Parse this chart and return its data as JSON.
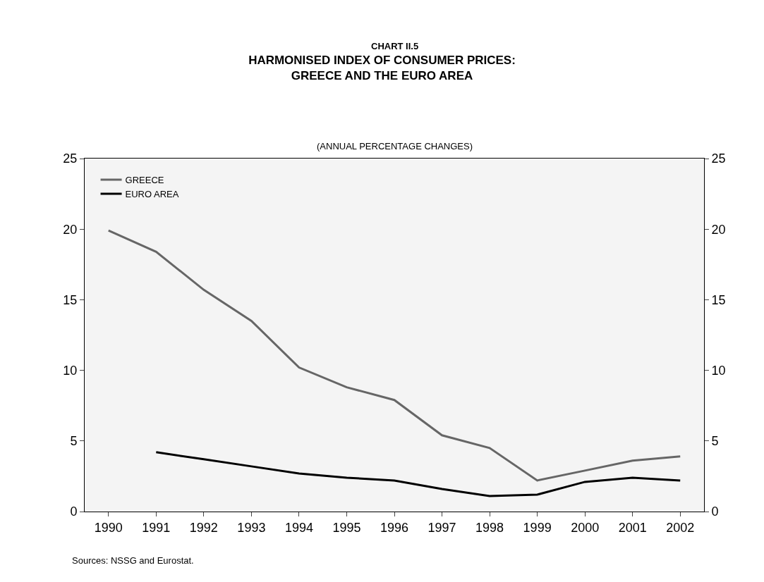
{
  "chart_data": {
    "type": "line",
    "title": "HARMONISED INDEX OF CONSUMER PRICES:\nGREECE AND THE EURO AREA",
    "subtitle": "(ANNUAL PERCENTAGE CHANGES)",
    "annotations": [
      "CHART II.5",
      "Sources: NSSG and Eurostat."
    ],
    "categories": [
      "1990",
      "1991",
      "1992",
      "1993",
      "1994",
      "1995",
      "1996",
      "1997",
      "1998",
      "1999",
      "2000",
      "2001",
      "2002"
    ],
    "series": [
      {
        "name": "GREECE",
        "color": "#666666",
        "values": [
          19.9,
          18.4,
          15.7,
          13.5,
          10.2,
          8.8,
          7.9,
          5.4,
          4.5,
          2.2,
          2.9,
          3.6,
          3.9
        ]
      },
      {
        "name": "EURO AREA",
        "color": "#000000",
        "values": [
          null,
          4.2,
          3.7,
          3.2,
          2.7,
          2.4,
          2.2,
          1.6,
          1.1,
          1.2,
          2.1,
          2.4,
          2.2
        ]
      }
    ],
    "ylim": [
      0,
      25
    ],
    "yticks": [
      0,
      5,
      10,
      15,
      20,
      25
    ],
    "y2lim": [
      0,
      25
    ],
    "y2ticks": [
      0,
      5,
      10,
      15,
      20,
      25
    ],
    "grid": false,
    "legend": "top left",
    "marker": "none",
    "line_style": "solid"
  }
}
